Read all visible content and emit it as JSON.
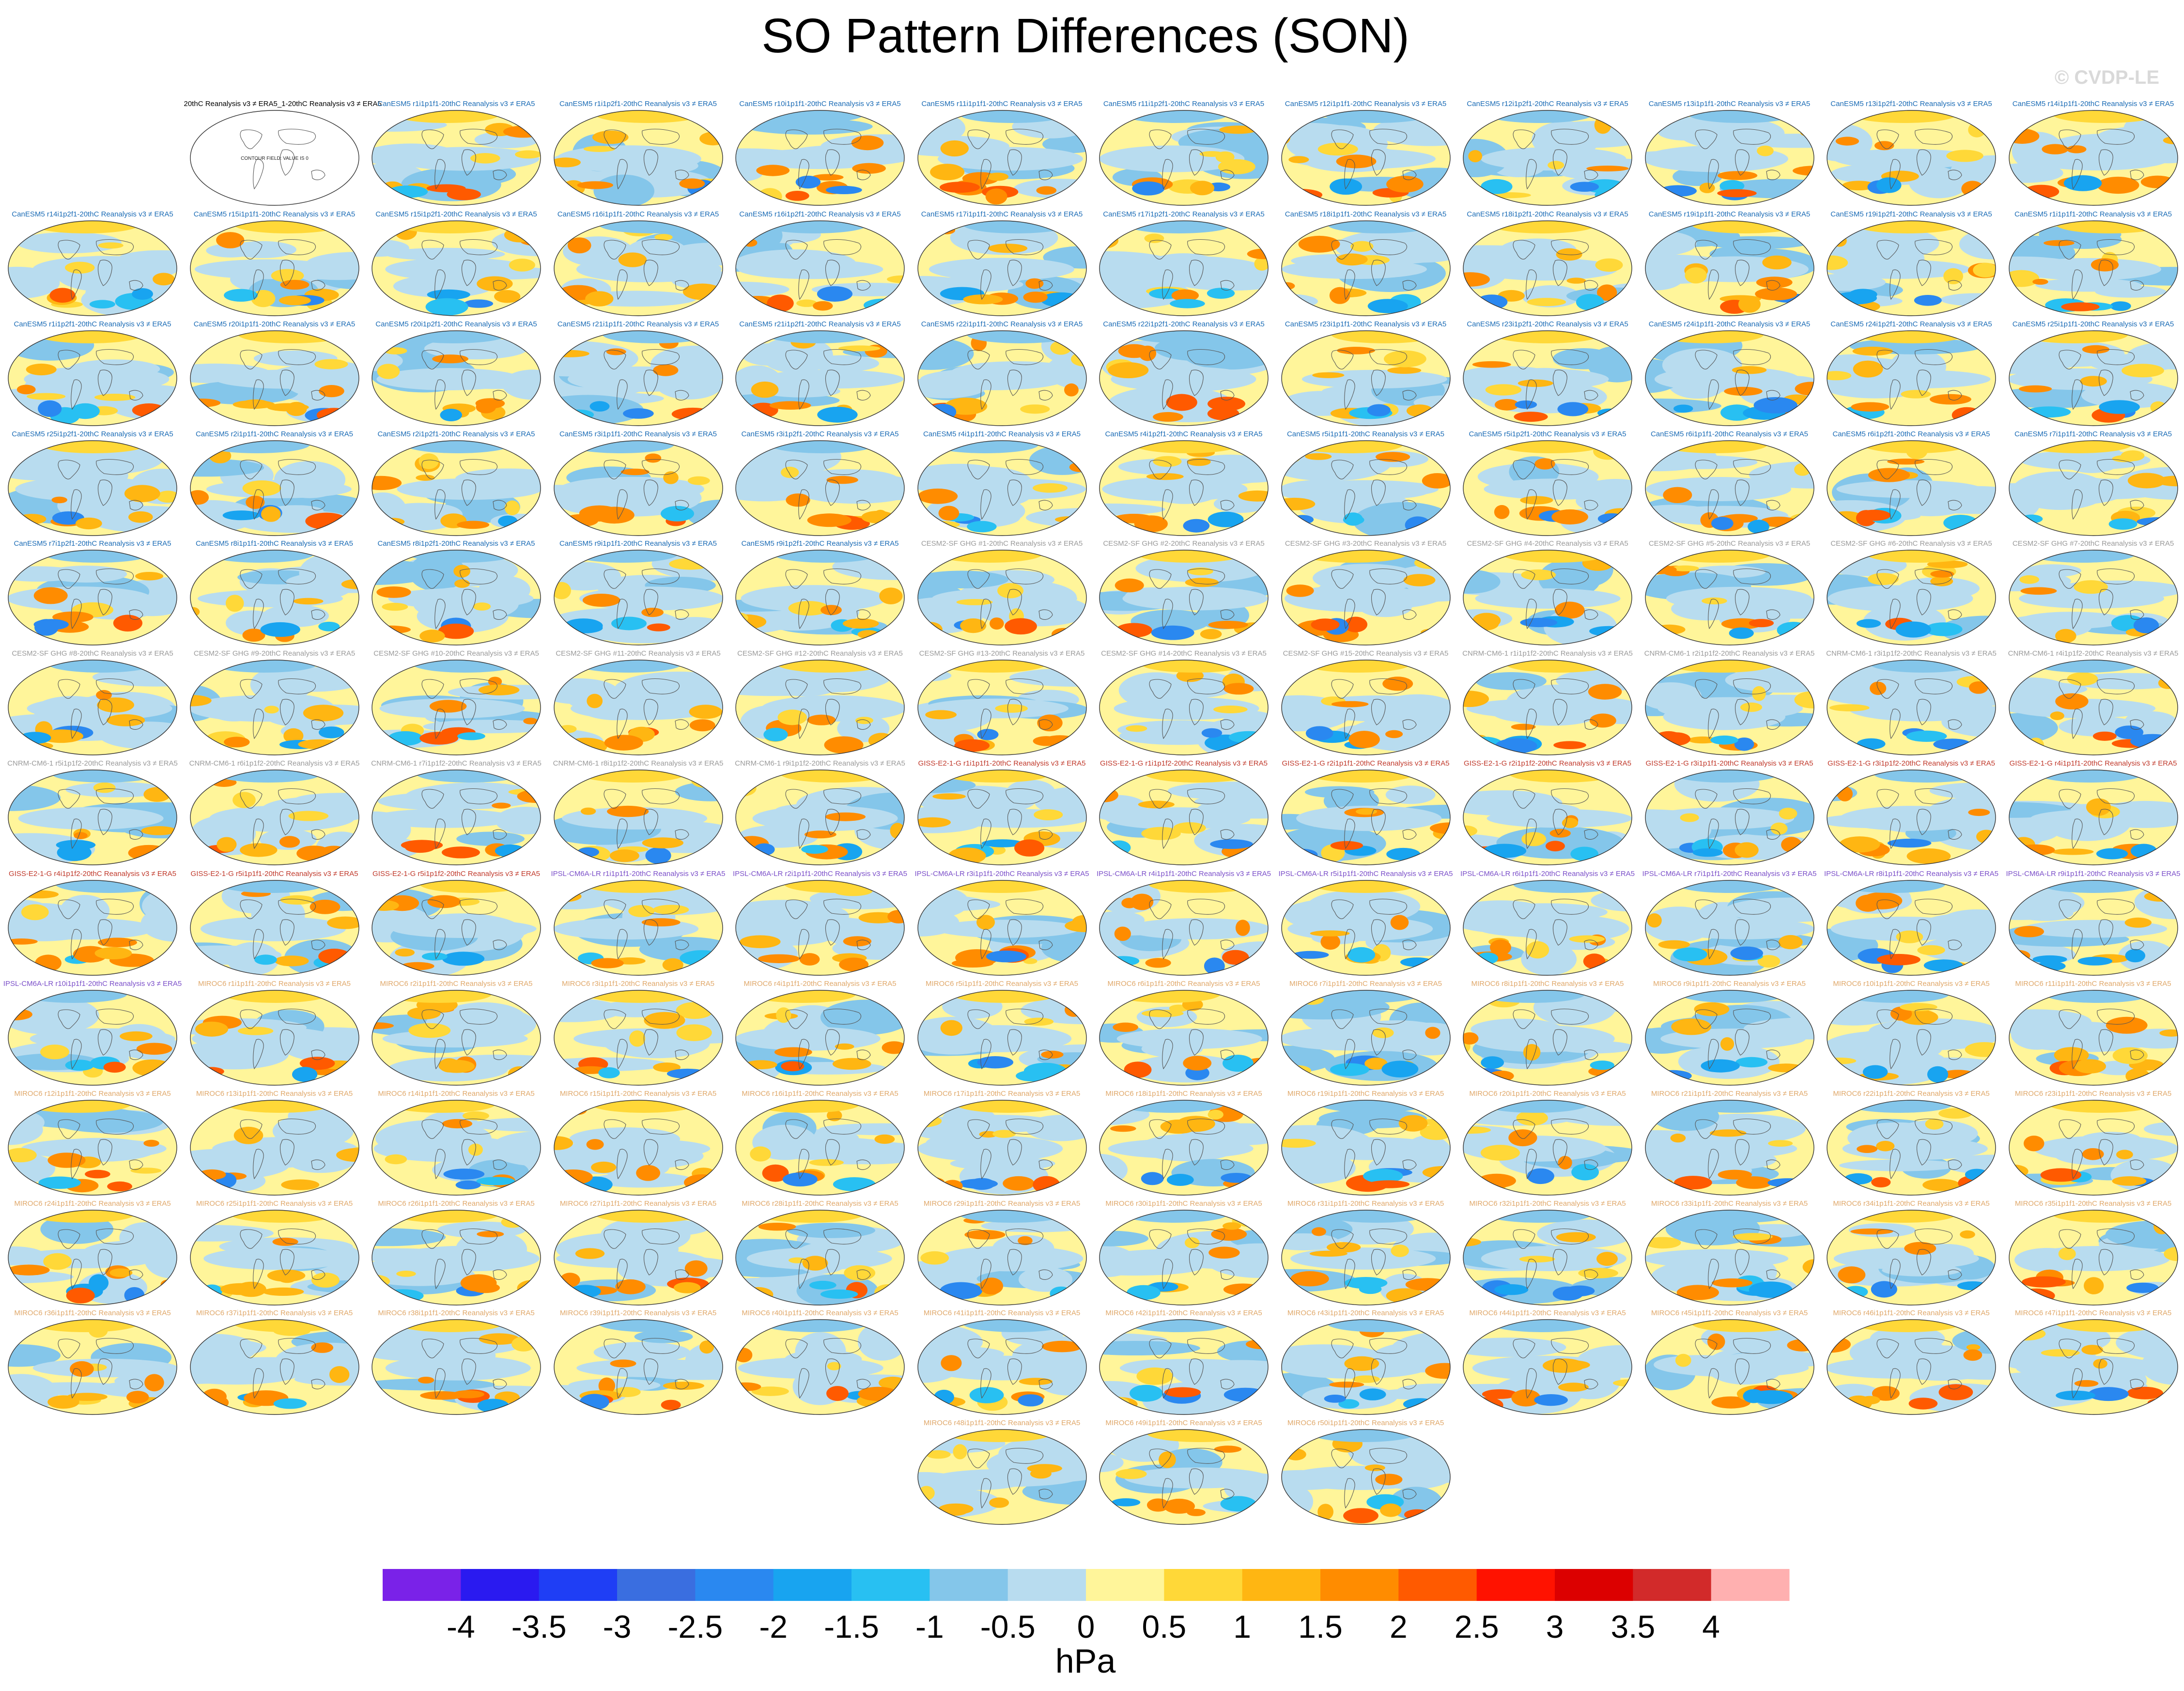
{
  "title": "SO Pattern Differences (SON)",
  "watermark": "© CVDP-LE",
  "chart_data": {
    "type": "heatmap",
    "variable": "SO pattern difference (sea level pressure)",
    "units": "hPa",
    "colorbar": {
      "tick_labels": [
        "-4",
        "-3.5",
        "-3",
        "-2.5",
        "-2",
        "-1.5",
        "-1",
        "-0.5",
        "0",
        "0.5",
        "1",
        "1.5",
        "2",
        "2.5",
        "3",
        "3.5",
        "4"
      ],
      "colors": [
        "#7a22e8",
        "#2a1af0",
        "#1f3ef5",
        "#3a6ee0",
        "#2a88f0",
        "#18a4f0",
        "#28c0f2",
        "#84c6ea",
        "#b8dcef",
        "#fff59a",
        "#ffd838",
        "#ffb612",
        "#ff8c00",
        "#ff5a00",
        "#ff1200",
        "#dc0000",
        "#d22a2a",
        "#ffb0b0"
      ]
    },
    "reference_panel": {
      "label": "20thC Reanalysis v3 ≠ ERA5_1-20thC Reanalysis v3 ≠ ERA5",
      "text": "CONTOUR FIELD: VALUE IS 0"
    },
    "panels": [
      {
        "label": "CanESM5 r1i1p1f1-20thC Reanalysis v3 ≠ ERA5",
        "color": "#1a6bb5"
      },
      {
        "label": "CanESM5 r1i1p2f1-20thC Reanalysis v3 ≠ ERA5",
        "color": "#1a6bb5"
      },
      {
        "label": "CanESM5 r10i1p1f1-20thC Reanalysis v3 ≠ ERA5",
        "color": "#1a6bb5"
      },
      {
        "label": "CanESM5 r11i1p1f1-20thC Reanalysis v3 ≠ ERA5",
        "color": "#1a6bb5"
      },
      {
        "label": "CanESM5 r11i1p2f1-20thC Reanalysis v3 ≠ ERA5",
        "color": "#1a6bb5"
      },
      {
        "label": "CanESM5 r12i1p1f1-20thC Reanalysis v3 ≠ ERA5",
        "color": "#1a6bb5"
      },
      {
        "label": "CanESM5 r12i1p2f1-20thC Reanalysis v3 ≠ ERA5",
        "color": "#1a6bb5"
      },
      {
        "label": "CanESM5 r13i1p1f1-20thC Reanalysis v3 ≠ ERA5",
        "color": "#1a6bb5"
      },
      {
        "label": "CanESM5 r13i1p2f1-20thC Reanalysis v3 ≠ ERA5",
        "color": "#1a6bb5"
      },
      {
        "label": "CanESM5 r14i1p1f1-20thC Reanalysis v3 ≠ ERA5",
        "color": "#1a6bb5"
      },
      {
        "label": "CanESM5 r14i1p2f1-20thC Reanalysis v3 ≠ ERA5",
        "color": "#1a6bb5"
      },
      {
        "label": "CanESM5 r15i1p1f1-20thC Reanalysis v3 ≠ ERA5",
        "color": "#1a6bb5"
      },
      {
        "label": "CanESM5 r15i1p2f1-20thC Reanalysis v3 ≠ ERA5",
        "color": "#1a6bb5"
      },
      {
        "label": "CanESM5 r16i1p1f1-20thC Reanalysis v3 ≠ ERA5",
        "color": "#1a6bb5"
      },
      {
        "label": "CanESM5 r16i1p2f1-20thC Reanalysis v3 ≠ ERA5",
        "color": "#1a6bb5"
      },
      {
        "label": "CanESM5 r17i1p1f1-20thC Reanalysis v3 ≠ ERA5",
        "color": "#1a6bb5"
      },
      {
        "label": "CanESM5 r17i1p2f1-20thC Reanalysis v3 ≠ ERA5",
        "color": "#1a6bb5"
      },
      {
        "label": "CanESM5 r18i1p1f1-20thC Reanalysis v3 ≠ ERA5",
        "color": "#1a6bb5"
      },
      {
        "label": "CanESM5 r18i1p2f1-20thC Reanalysis v3 ≠ ERA5",
        "color": "#1a6bb5"
      },
      {
        "label": "CanESM5 r19i1p1f1-20thC Reanalysis v3 ≠ ERA5",
        "color": "#1a6bb5"
      },
      {
        "label": "CanESM5 r19i1p2f1-20thC Reanalysis v3 ≠ ERA5",
        "color": "#1a6bb5"
      },
      {
        "label": "CanESM5 r1i1p1f1-20thC Reanalysis v3 ≠ ERA5",
        "color": "#1a6bb5"
      },
      {
        "label": "CanESM5 r1i1p2f1-20thC Reanalysis v3 ≠ ERA5",
        "color": "#1a6bb5"
      },
      {
        "label": "CanESM5 r20i1p1f1-20thC Reanalysis v3 ≠ ERA5",
        "color": "#1a6bb5"
      },
      {
        "label": "CanESM5 r20i1p2f1-20thC Reanalysis v3 ≠ ERA5",
        "color": "#1a6bb5"
      },
      {
        "label": "CanESM5 r21i1p1f1-20thC Reanalysis v3 ≠ ERA5",
        "color": "#1a6bb5"
      },
      {
        "label": "CanESM5 r21i1p2f1-20thC Reanalysis v3 ≠ ERA5",
        "color": "#1a6bb5"
      },
      {
        "label": "CanESM5 r22i1p1f1-20thC Reanalysis v3 ≠ ERA5",
        "color": "#1a6bb5"
      },
      {
        "label": "CanESM5 r22i1p2f1-20thC Reanalysis v3 ≠ ERA5",
        "color": "#1a6bb5"
      },
      {
        "label": "CanESM5 r23i1p1f1-20thC Reanalysis v3 ≠ ERA5",
        "color": "#1a6bb5"
      },
      {
        "label": "CanESM5 r23i1p2f1-20thC Reanalysis v3 ≠ ERA5",
        "color": "#1a6bb5"
      },
      {
        "label": "CanESM5 r24i1p1f1-20thC Reanalysis v3 ≠ ERA5",
        "color": "#1a6bb5"
      },
      {
        "label": "CanESM5 r24i1p2f1-20thC Reanalysis v3 ≠ ERA5",
        "color": "#1a6bb5"
      },
      {
        "label": "CanESM5 r25i1p1f1-20thC Reanalysis v3 ≠ ERA5",
        "color": "#1a6bb5"
      },
      {
        "label": "CanESM5 r25i1p2f1-20thC Reanalysis v3 ≠ ERA5",
        "color": "#1a6bb5"
      },
      {
        "label": "CanESM5 r2i1p1f1-20thC Reanalysis v3 ≠ ERA5",
        "color": "#1a6bb5"
      },
      {
        "label": "CanESM5 r2i1p2f1-20thC Reanalysis v3 ≠ ERA5",
        "color": "#1a6bb5"
      },
      {
        "label": "CanESM5 r3i1p1f1-20thC Reanalysis v3 ≠ ERA5",
        "color": "#1a6bb5"
      },
      {
        "label": "CanESM5 r3i1p2f1-20thC Reanalysis v3 ≠ ERA5",
        "color": "#1a6bb5"
      },
      {
        "label": "CanESM5 r4i1p1f1-20thC Reanalysis v3 ≠ ERA5",
        "color": "#1a6bb5"
      },
      {
        "label": "CanESM5 r4i1p2f1-20thC Reanalysis v3 ≠ ERA5",
        "color": "#1a6bb5"
      },
      {
        "label": "CanESM5 r5i1p1f1-20thC Reanalysis v3 ≠ ERA5",
        "color": "#1a6bb5"
      },
      {
        "label": "CanESM5 r5i1p2f1-20thC Reanalysis v3 ≠ ERA5",
        "color": "#1a6bb5"
      },
      {
        "label": "CanESM5 r6i1p1f1-20thC Reanalysis v3 ≠ ERA5",
        "color": "#1a6bb5"
      },
      {
        "label": "CanESM5 r6i1p2f1-20thC Reanalysis v3 ≠ ERA5",
        "color": "#1a6bb5"
      },
      {
        "label": "CanESM5 r7i1p1f1-20thC Reanalysis v3 ≠ ERA5",
        "color": "#1a6bb5"
      },
      {
        "label": "CanESM5 r7i1p2f1-20thC Reanalysis v3 ≠ ERA5",
        "color": "#1a6bb5"
      },
      {
        "label": "CanESM5 r8i1p1f1-20thC Reanalysis v3 ≠ ERA5",
        "color": "#1a6bb5"
      },
      {
        "label": "CanESM5 r8i1p2f1-20thC Reanalysis v3 ≠ ERA5",
        "color": "#1a6bb5"
      },
      {
        "label": "CanESM5 r9i1p1f1-20thC Reanalysis v3 ≠ ERA5",
        "color": "#1a6bb5"
      },
      {
        "label": "CanESM5 r9i1p2f1-20thC Reanalysis v3 ≠ ERA5",
        "color": "#1a6bb5"
      },
      {
        "label": "CESM2-SF GHG #1-20thC Reanalysis v3 ≠ ERA5",
        "color": "#9a9a9a"
      },
      {
        "label": "CESM2-SF GHG #2-20thC Reanalysis v3 ≠ ERA5",
        "color": "#9a9a9a"
      },
      {
        "label": "CESM2-SF GHG #3-20thC Reanalysis v3 ≠ ERA5",
        "color": "#9a9a9a"
      },
      {
        "label": "CESM2-SF GHG #4-20thC Reanalysis v3 ≠ ERA5",
        "color": "#9a9a9a"
      },
      {
        "label": "CESM2-SF GHG #5-20thC Reanalysis v3 ≠ ERA5",
        "color": "#9a9a9a"
      },
      {
        "label": "CESM2-SF GHG #6-20thC Reanalysis v3 ≠ ERA5",
        "color": "#9a9a9a"
      },
      {
        "label": "CESM2-SF GHG #7-20thC Reanalysis v3 ≠ ERA5",
        "color": "#9a9a9a"
      },
      {
        "label": "CESM2-SF GHG #8-20thC Reanalysis v3 ≠ ERA5",
        "color": "#9a9a9a"
      },
      {
        "label": "CESM2-SF GHG #9-20thC Reanalysis v3 ≠ ERA5",
        "color": "#9a9a9a"
      },
      {
        "label": "CESM2-SF GHG #10-20thC Reanalysis v3 ≠ ERA5",
        "color": "#9a9a9a"
      },
      {
        "label": "CESM2-SF GHG #11-20thC Reanalysis v3 ≠ ERA5",
        "color": "#9a9a9a"
      },
      {
        "label": "CESM2-SF GHG #12-20thC Reanalysis v3 ≠ ERA5",
        "color": "#9a9a9a"
      },
      {
        "label": "CESM2-SF GHG #13-20thC Reanalysis v3 ≠ ERA5",
        "color": "#9a9a9a"
      },
      {
        "label": "CESM2-SF GHG #14-20thC Reanalysis v3 ≠ ERA5",
        "color": "#9a9a9a"
      },
      {
        "label": "CESM2-SF GHG #15-20thC Reanalysis v3 ≠ ERA5",
        "color": "#9a9a9a"
      },
      {
        "label": "CNRM-CM6-1 r1i1p1f2-20thC Reanalysis v3 ≠ ERA5",
        "color": "#9a9a9a"
      },
      {
        "label": "CNRM-CM6-1 r2i1p1f2-20thC Reanalysis v3 ≠ ERA5",
        "color": "#9a9a9a"
      },
      {
        "label": "CNRM-CM6-1 r3i1p1f2-20thC Reanalysis v3 ≠ ERA5",
        "color": "#9a9a9a"
      },
      {
        "label": "CNRM-CM6-1 r4i1p1f2-20thC Reanalysis v3 ≠ ERA5",
        "color": "#9a9a9a"
      },
      {
        "label": "CNRM-CM6-1 r5i1p1f2-20thC Reanalysis v3 ≠ ERA5",
        "color": "#9a9a9a"
      },
      {
        "label": "CNRM-CM6-1 r6i1p1f2-20thC Reanalysis v3 ≠ ERA5",
        "color": "#9a9a9a"
      },
      {
        "label": "CNRM-CM6-1 r7i1p1f2-20thC Reanalysis v3 ≠ ERA5",
        "color": "#9a9a9a"
      },
      {
        "label": "CNRM-CM6-1 r8i1p1f2-20thC Reanalysis v3 ≠ ERA5",
        "color": "#9a9a9a"
      },
      {
        "label": "CNRM-CM6-1 r9i1p1f2-20thC Reanalysis v3 ≠ ERA5",
        "color": "#9a9a9a"
      },
      {
        "label": "GISS-E2-1-G r1i1p1f1-20thC Reanalysis v3 ≠ ERA5",
        "color": "#c0392b"
      },
      {
        "label": "GISS-E2-1-G r1i1p1f2-20thC Reanalysis v3 ≠ ERA5",
        "color": "#c0392b"
      },
      {
        "label": "GISS-E2-1-G r2i1p1f1-20thC Reanalysis v3 ≠ ERA5",
        "color": "#c0392b"
      },
      {
        "label": "GISS-E2-1-G r2i1p1f2-20thC Reanalysis v3 ≠ ERA5",
        "color": "#c0392b"
      },
      {
        "label": "GISS-E2-1-G r3i1p1f1-20thC Reanalysis v3 ≠ ERA5",
        "color": "#c0392b"
      },
      {
        "label": "GISS-E2-1-G r3i1p1f2-20thC Reanalysis v3 ≠ ERA5",
        "color": "#c0392b"
      },
      {
        "label": "GISS-E2-1-G r4i1p1f1-20thC Reanalysis v3 ≠ ERA5",
        "color": "#c0392b"
      },
      {
        "label": "GISS-E2-1-G r4i1p1f2-20thC Reanalysis v3 ≠ ERA5",
        "color": "#c0392b"
      },
      {
        "label": "GISS-E2-1-G r5i1p1f1-20thC Reanalysis v3 ≠ ERA5",
        "color": "#c0392b"
      },
      {
        "label": "GISS-E2-1-G r5i1p1f2-20thC Reanalysis v3 ≠ ERA5",
        "color": "#c0392b"
      },
      {
        "label": "IPSL-CM6A-LR r1i1p1f1-20thC Reanalysis v3 ≠ ERA5",
        "color": "#7b4fc9"
      },
      {
        "label": "IPSL-CM6A-LR r2i1p1f1-20thC Reanalysis v3 ≠ ERA5",
        "color": "#7b4fc9"
      },
      {
        "label": "IPSL-CM6A-LR r3i1p1f1-20thC Reanalysis v3 ≠ ERA5",
        "color": "#7b4fc9"
      },
      {
        "label": "IPSL-CM6A-LR r4i1p1f1-20thC Reanalysis v3 ≠ ERA5",
        "color": "#7b4fc9"
      },
      {
        "label": "IPSL-CM6A-LR r5i1p1f1-20thC Reanalysis v3 ≠ ERA5",
        "color": "#7b4fc9"
      },
      {
        "label": "IPSL-CM6A-LR r6i1p1f1-20thC Reanalysis v3 ≠ ERA5",
        "color": "#7b4fc9"
      },
      {
        "label": "IPSL-CM6A-LR r7i1p1f1-20thC Reanalysis v3 ≠ ERA5",
        "color": "#7b4fc9"
      },
      {
        "label": "IPSL-CM6A-LR r8i1p1f1-20thC Reanalysis v3 ≠ ERA5",
        "color": "#7b4fc9"
      },
      {
        "label": "IPSL-CM6A-LR r9i1p1f1-20thC Reanalysis v3 ≠ ERA5",
        "color": "#7b4fc9"
      },
      {
        "label": "IPSL-CM6A-LR r10i1p1f1-20thC Reanalysis v3 ≠ ERA5",
        "color": "#7b4fc9"
      },
      {
        "label": "MIROC6 r1i1p1f1-20thC Reanalysis v3 ≠ ERA5",
        "color": "#e0a86a"
      },
      {
        "label": "MIROC6 r2i1p1f1-20thC Reanalysis v3 ≠ ERA5",
        "color": "#e0a86a"
      },
      {
        "label": "MIROC6 r3i1p1f1-20thC Reanalysis v3 ≠ ERA5",
        "color": "#e0a86a"
      },
      {
        "label": "MIROC6 r4i1p1f1-20thC Reanalysis v3 ≠ ERA5",
        "color": "#e0a86a"
      },
      {
        "label": "MIROC6 r5i1p1f1-20thC Reanalysis v3 ≠ ERA5",
        "color": "#e0a86a"
      },
      {
        "label": "MIROC6 r6i1p1f1-20thC Reanalysis v3 ≠ ERA5",
        "color": "#e0a86a"
      },
      {
        "label": "MIROC6 r7i1p1f1-20thC Reanalysis v3 ≠ ERA5",
        "color": "#e0a86a"
      },
      {
        "label": "MIROC6 r8i1p1f1-20thC Reanalysis v3 ≠ ERA5",
        "color": "#e0a86a"
      },
      {
        "label": "MIROC6 r9i1p1f1-20thC Reanalysis v3 ≠ ERA5",
        "color": "#e0a86a"
      },
      {
        "label": "MIROC6 r10i1p1f1-20thC Reanalysis v3 ≠ ERA5",
        "color": "#e0a86a"
      },
      {
        "label": "MIROC6 r11i1p1f1-20thC Reanalysis v3 ≠ ERA5",
        "color": "#e0a86a"
      },
      {
        "label": "MIROC6 r12i1p1f1-20thC Reanalysis v3 ≠ ERA5",
        "color": "#e0a86a"
      },
      {
        "label": "MIROC6 r13i1p1f1-20thC Reanalysis v3 ≠ ERA5",
        "color": "#e0a86a"
      },
      {
        "label": "MIROC6 r14i1p1f1-20thC Reanalysis v3 ≠ ERA5",
        "color": "#e0a86a"
      },
      {
        "label": "MIROC6 r15i1p1f1-20thC Reanalysis v3 ≠ ERA5",
        "color": "#e0a86a"
      },
      {
        "label": "MIROC6 r16i1p1f1-20thC Reanalysis v3 ≠ ERA5",
        "color": "#e0a86a"
      },
      {
        "label": "MIROC6 r17i1p1f1-20thC Reanalysis v3 ≠ ERA5",
        "color": "#e0a86a"
      },
      {
        "label": "MIROC6 r18i1p1f1-20thC Reanalysis v3 ≠ ERA5",
        "color": "#e0a86a"
      },
      {
        "label": "MIROC6 r19i1p1f1-20thC Reanalysis v3 ≠ ERA5",
        "color": "#e0a86a"
      },
      {
        "label": "MIROC6 r20i1p1f1-20thC Reanalysis v3 ≠ ERA5",
        "color": "#e0a86a"
      },
      {
        "label": "MIROC6 r21i1p1f1-20thC Reanalysis v3 ≠ ERA5",
        "color": "#e0a86a"
      },
      {
        "label": "MIROC6 r22i1p1f1-20thC Reanalysis v3 ≠ ERA5",
        "color": "#e0a86a"
      },
      {
        "label": "MIROC6 r23i1p1f1-20thC Reanalysis v3 ≠ ERA5",
        "color": "#e0a86a"
      },
      {
        "label": "MIROC6 r24i1p1f1-20thC Reanalysis v3 ≠ ERA5",
        "color": "#e0a86a"
      },
      {
        "label": "MIROC6 r25i1p1f1-20thC Reanalysis v3 ≠ ERA5",
        "color": "#e0a86a"
      },
      {
        "label": "MIROC6 r26i1p1f1-20thC Reanalysis v3 ≠ ERA5",
        "color": "#e0a86a"
      },
      {
        "label": "MIROC6 r27i1p1f1-20thC Reanalysis v3 ≠ ERA5",
        "color": "#e0a86a"
      },
      {
        "label": "MIROC6 r28i1p1f1-20thC Reanalysis v3 ≠ ERA5",
        "color": "#e0a86a"
      },
      {
        "label": "MIROC6 r29i1p1f1-20thC Reanalysis v3 ≠ ERA5",
        "color": "#e0a86a"
      },
      {
        "label": "MIROC6 r30i1p1f1-20thC Reanalysis v3 ≠ ERA5",
        "color": "#e0a86a"
      },
      {
        "label": "MIROC6 r31i1p1f1-20thC Reanalysis v3 ≠ ERA5",
        "color": "#e0a86a"
      },
      {
        "label": "MIROC6 r32i1p1f1-20thC Reanalysis v3 ≠ ERA5",
        "color": "#e0a86a"
      },
      {
        "label": "MIROC6 r33i1p1f1-20thC Reanalysis v3 ≠ ERA5",
        "color": "#e0a86a"
      },
      {
        "label": "MIROC6 r34i1p1f1-20thC Reanalysis v3 ≠ ERA5",
        "color": "#e0a86a"
      },
      {
        "label": "MIROC6 r35i1p1f1-20thC Reanalysis v3 ≠ ERA5",
        "color": "#e0a86a"
      },
      {
        "label": "MIROC6 r36i1p1f1-20thC Reanalysis v3 ≠ ERA5",
        "color": "#e0a86a"
      },
      {
        "label": "MIROC6 r37i1p1f1-20thC Reanalysis v3 ≠ ERA5",
        "color": "#e0a86a"
      },
      {
        "label": "MIROC6 r38i1p1f1-20thC Reanalysis v3 ≠ ERA5",
        "color": "#e0a86a"
      },
      {
        "label": "MIROC6 r39i1p1f1-20thC Reanalysis v3 ≠ ERA5",
        "color": "#e0a86a"
      },
      {
        "label": "MIROC6 r40i1p1f1-20thC Reanalysis v3 ≠ ERA5",
        "color": "#e0a86a"
      },
      {
        "label": "MIROC6 r41i1p1f1-20thC Reanalysis v3 ≠ ERA5",
        "color": "#e0a86a"
      },
      {
        "label": "MIROC6 r42i1p1f1-20thC Reanalysis v3 ≠ ERA5",
        "color": "#e0a86a"
      },
      {
        "label": "MIROC6 r43i1p1f1-20thC Reanalysis v3 ≠ ERA5",
        "color": "#e0a86a"
      },
      {
        "label": "MIROC6 r44i1p1f1-20thC Reanalysis v3 ≠ ERA5",
        "color": "#e0a86a"
      },
      {
        "label": "MIROC6 r45i1p1f1-20thC Reanalysis v3 ≠ ERA5",
        "color": "#e0a86a"
      },
      {
        "label": "MIROC6 r46i1p1f1-20thC Reanalysis v3 ≠ ERA5",
        "color": "#e0a86a"
      },
      {
        "label": "MIROC6 r47i1p1f1-20thC Reanalysis v3 ≠ ERA5",
        "color": "#e0a86a"
      },
      {
        "label": "MIROC6 r48i1p1f1-20thC Reanalysis v3 ≠ ERA5",
        "color": "#e0a86a"
      },
      {
        "label": "MIROC6 r49i1p1f1-20thC Reanalysis v3 ≠ ERA5",
        "color": "#e0a86a"
      },
      {
        "label": "MIROC6 r50i1p1f1-20thC Reanalysis v3 ≠ ERA5",
        "color": "#e0a86a"
      }
    ]
  }
}
